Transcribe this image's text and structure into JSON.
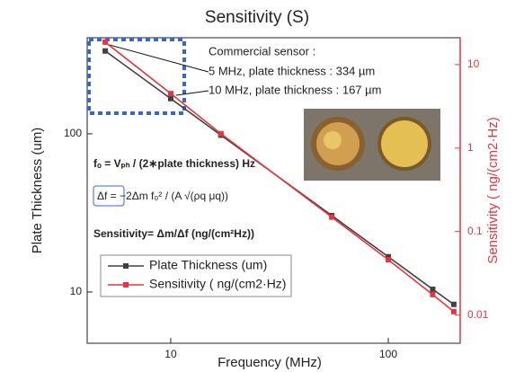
{
  "chart_data": {
    "type": "line",
    "title": "Sensitivity (S)",
    "x_label": "Frequency (MHz)",
    "y_label": "Plate Thickness (um)",
    "y2_label": "Sensitivity ( ng/(cm2·Hz)",
    "log_x": true,
    "log_y": true,
    "log_y2": true,
    "x": [
      5,
      10,
      17,
      55,
      100,
      160,
      200
    ],
    "xlim": [
      4.13,
      214
    ],
    "xticks": [
      10,
      100
    ],
    "ylim": [
      4.74,
      405
    ],
    "yticks": [
      10,
      100
    ],
    "y2lim": [
      0.0046,
      21
    ],
    "y2ticks": [
      0.01,
      0.1,
      1,
      10
    ],
    "series": [
      {
        "name": "Plate Thickness (um)",
        "color": "#404040",
        "values": [
          334,
          167,
          98,
          30.4,
          16.7,
          10.4,
          8.35
        ]
      },
      {
        "name": "Sensitivity ( ng/(cm2·Hz)",
        "color": "#e8343f",
        "axis": "y2",
        "values": [
          18.6,
          4.5,
          1.49,
          0.149,
          0.046,
          0.0176,
          0.011
        ]
      }
    ],
    "legend": "lower left",
    "annotations": [
      "Commercial sensor :",
      "5 MHz, plate thickness : 334 µm",
      "10 MHz, plate thickness : 167 µm"
    ],
    "formulas": [
      "fₒ = Vₚₕ / (2∗plate thickness)   Hz",
      "Δf = −2Δm f₀² / (A √(ρq μq))",
      "Sensitivity= Δm/Δf  (ng/(cm²Hz))"
    ]
  }
}
